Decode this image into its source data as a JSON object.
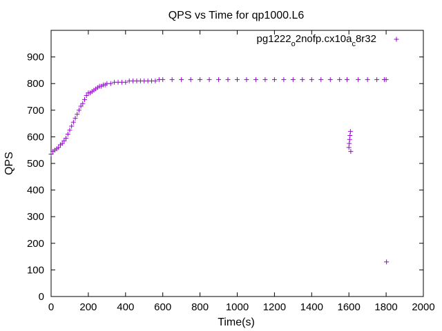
{
  "chart_data": {
    "type": "scatter",
    "title": "QPS vs Time for qp1000.L6",
    "xlabel": "Time(s)",
    "ylabel": "QPS",
    "xlim": [
      0,
      2000
    ],
    "ylim": [
      0,
      1000
    ],
    "x_ticks": [
      "0",
      "200",
      "400",
      "600",
      "800",
      "1000",
      "1200",
      "1400",
      "1600",
      "1800",
      "2000"
    ],
    "y_ticks": [
      "0",
      "100",
      "200",
      "300",
      "400",
      "500",
      "600",
      "700",
      "800",
      "900"
    ],
    "grid": false,
    "legend_position": "top-right",
    "marker": "plus",
    "color": "#9400d3",
    "series": [
      {
        "name": "pg1222o2nofp.cx10ac8r32",
        "name_parts": [
          "pg1222",
          "o",
          "2nofp.cx10a",
          "c",
          "8r32"
        ],
        "x": [
          0,
          10,
          20,
          30,
          40,
          50,
          60,
          70,
          80,
          90,
          100,
          110,
          120,
          130,
          140,
          150,
          160,
          170,
          180,
          190,
          200,
          210,
          220,
          230,
          240,
          250,
          260,
          270,
          280,
          290,
          300,
          320,
          340,
          360,
          380,
          400,
          420,
          440,
          460,
          480,
          500,
          520,
          540,
          560,
          580,
          600,
          650,
          700,
          750,
          800,
          850,
          900,
          950,
          1000,
          1050,
          1100,
          1150,
          1200,
          1250,
          1300,
          1350,
          1400,
          1450,
          1500,
          1550,
          1590,
          1600,
          1602,
          1604,
          1606,
          1608,
          1610,
          1650,
          1700,
          1750,
          1790,
          1800,
          1802
        ],
        "y": [
          535,
          545,
          550,
          555,
          560,
          570,
          575,
          585,
          595,
          610,
          625,
          640,
          655,
          670,
          685,
          700,
          715,
          725,
          740,
          755,
          765,
          765,
          770,
          775,
          780,
          785,
          790,
          790,
          795,
          795,
          800,
          800,
          805,
          805,
          805,
          805,
          810,
          810,
          810,
          810,
          810,
          810,
          810,
          810,
          815,
          815,
          815,
          815,
          815,
          815,
          815,
          815,
          815,
          815,
          815,
          815,
          815,
          815,
          815,
          815,
          815,
          815,
          815,
          815,
          815,
          815,
          560,
          575,
          590,
          605,
          620,
          545,
          815,
          815,
          815,
          815,
          815,
          130
        ]
      }
    ]
  }
}
